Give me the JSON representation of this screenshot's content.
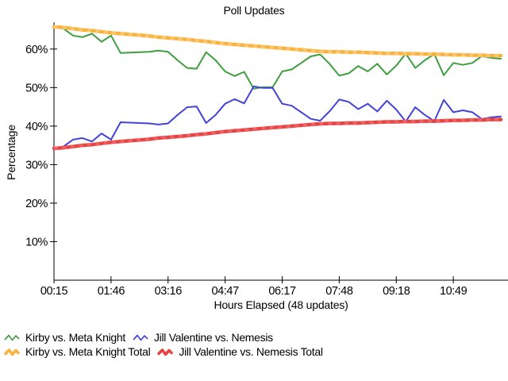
{
  "title": "Poll Updates",
  "colors": {
    "background": "#ffffff",
    "text": "#000000",
    "axis": "#000000"
  },
  "chart_data": {
    "type": "line",
    "title": "Poll Updates",
    "xlabel": "Hours Elapsed (48 updates)",
    "ylabel": "Percentage",
    "grid": false,
    "legend_position": "bottom-left",
    "x_count": 48,
    "x_tick_labels": [
      "00:15",
      "01:46",
      "03:16",
      "04:47",
      "06:17",
      "07:48",
      "09:18",
      "10:49"
    ],
    "x_tick_updates": [
      1,
      7,
      13,
      19,
      25,
      31,
      37,
      43
    ],
    "y_ticks": [
      "10%",
      "20%",
      "30%",
      "40%",
      "50%",
      "60%"
    ],
    "y_tick_values": [
      10,
      20,
      30,
      40,
      50,
      60
    ],
    "ylim": [
      0,
      67
    ],
    "series": [
      {
        "name": "Kirby vs. Meta Knight",
        "color": "#3f9e3f",
        "width": 2,
        "style": "plain",
        "values": [
          65.8,
          65.3,
          63.5,
          63.1,
          64.0,
          61.9,
          63.5,
          59.0,
          59.1,
          59.2,
          59.3,
          59.6,
          59.3,
          57.1,
          55.1,
          54.9,
          59.2,
          57.1,
          54.2,
          53.0,
          54.1,
          49.7,
          50.1,
          50.1,
          54.2,
          54.7,
          56.4,
          58.1,
          58.6,
          56.1,
          53.1,
          53.7,
          55.6,
          54.2,
          56.2,
          53.4,
          55.7,
          58.8,
          55.1,
          57.1,
          58.7,
          53.2,
          56.4,
          55.9,
          56.4,
          58.2,
          57.7,
          57.5
        ]
      },
      {
        "name": "Jill Valentine vs. Nemesis",
        "color": "#4343db",
        "width": 2,
        "style": "plain",
        "values": [
          34.2,
          34.7,
          36.5,
          36.9,
          36.0,
          38.1,
          36.5,
          41.0,
          40.9,
          40.8,
          40.7,
          40.4,
          40.7,
          42.9,
          44.9,
          45.1,
          40.8,
          42.9,
          45.8,
          47.0,
          45.9,
          50.3,
          49.9,
          49.9,
          45.8,
          45.3,
          43.6,
          41.9,
          41.4,
          43.9,
          46.9,
          46.3,
          44.4,
          45.8,
          43.8,
          46.6,
          44.3,
          41.2,
          44.9,
          42.9,
          41.3,
          46.8,
          43.6,
          44.1,
          43.6,
          41.8,
          42.3,
          42.5
        ]
      },
      {
        "name": "Kirby vs. Meta Knight Total",
        "color": "#f9b13f",
        "dash_color": "#fdc96e",
        "width": 4.5,
        "style": "beaded",
        "values": [
          65.8,
          65.6,
          65.3,
          65.0,
          64.8,
          64.5,
          64.2,
          64.0,
          63.8,
          63.6,
          63.4,
          63.1,
          62.9,
          62.7,
          62.5,
          62.2,
          62.0,
          61.7,
          61.4,
          61.2,
          61.0,
          60.8,
          60.6,
          60.4,
          60.2,
          60.0,
          59.8,
          59.6,
          59.4,
          59.3,
          59.3,
          59.2,
          59.2,
          59.1,
          59.0,
          58.9,
          58.9,
          58.8,
          58.8,
          58.7,
          58.7,
          58.6,
          58.5,
          58.5,
          58.4,
          58.4,
          58.3,
          58.3
        ]
      },
      {
        "name": "Jill Valentine vs. Nemesis Total",
        "color": "#e84343",
        "dash_color": "#f26464",
        "width": 4.5,
        "style": "beaded",
        "values": [
          34.2,
          34.4,
          34.7,
          35.0,
          35.2,
          35.5,
          35.8,
          36.0,
          36.2,
          36.4,
          36.6,
          36.9,
          37.1,
          37.3,
          37.5,
          37.8,
          38.0,
          38.3,
          38.6,
          38.8,
          39.0,
          39.2,
          39.4,
          39.6,
          39.8,
          40.0,
          40.2,
          40.4,
          40.6,
          40.7,
          40.7,
          40.8,
          40.8,
          40.9,
          41.0,
          41.1,
          41.1,
          41.2,
          41.2,
          41.3,
          41.3,
          41.4,
          41.5,
          41.5,
          41.6,
          41.6,
          41.7,
          41.7
        ]
      }
    ]
  }
}
